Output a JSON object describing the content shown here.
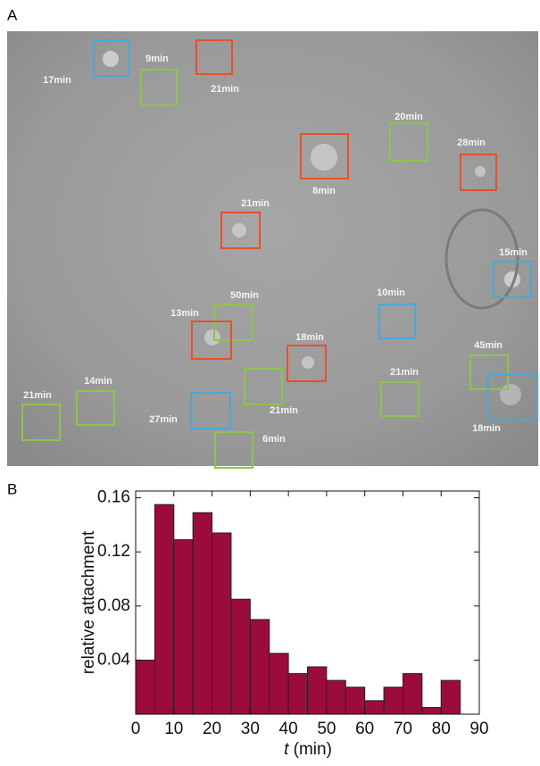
{
  "panel_labels": [
    "A",
    "B"
  ],
  "image_annotations": [
    {
      "label": "17min",
      "color": "#4aa8d8"
    },
    {
      "label": "9min",
      "color": "#8dc44a"
    },
    {
      "label": "21min",
      "color": "#e8502a"
    },
    {
      "label": "8min",
      "color": "#e8502a"
    },
    {
      "label": "20min",
      "color": "#8dc44a"
    },
    {
      "label": "28min",
      "color": "#e8502a"
    },
    {
      "label": "21min",
      "color": "#e8502a"
    },
    {
      "label": "15min",
      "color": "#4aa8d8"
    },
    {
      "label": "50min",
      "color": "#8dc44a"
    },
    {
      "label": "13min",
      "color": "#e8502a"
    },
    {
      "label": "10min",
      "color": "#4aa8d8"
    },
    {
      "label": "18min",
      "color": "#e8502a"
    },
    {
      "label": "45min",
      "color": "#8dc44a"
    },
    {
      "label": "18min",
      "color": "#4aa8d8"
    },
    {
      "label": "21min",
      "color": "#8dc44a"
    },
    {
      "label": "21min",
      "color": "#8dc44a"
    },
    {
      "label": "14min",
      "color": "#8dc44a"
    },
    {
      "label": "21min",
      "color": "#8dc44a"
    },
    {
      "label": "27min",
      "color": "#4aa8d8"
    },
    {
      "label": "6min",
      "color": "#8dc44a"
    }
  ],
  "chart_data": {
    "type": "histogram",
    "xlabel": {
      "variable": "t",
      "unit": "(min)"
    },
    "ylabel": "relative attachment",
    "bins": [
      0,
      5,
      10,
      15,
      20,
      25,
      30,
      35,
      40,
      45,
      50,
      55,
      60,
      65,
      70,
      75,
      80,
      85
    ],
    "values": [
      0.04,
      0.155,
      0.129,
      0.149,
      0.134,
      0.085,
      0.07,
      0.045,
      0.03,
      0.035,
      0.025,
      0.02,
      0.01,
      0.02,
      0.03,
      0.005,
      0.025
    ],
    "color": "#9b0c3a",
    "xlim": [
      0,
      90
    ],
    "xticks": [
      0,
      10,
      20,
      30,
      40,
      50,
      60,
      70,
      80,
      90
    ],
    "ylim": [
      0,
      0.165
    ],
    "yticks": [
      0.04,
      0.08,
      0.12,
      0.16
    ]
  }
}
